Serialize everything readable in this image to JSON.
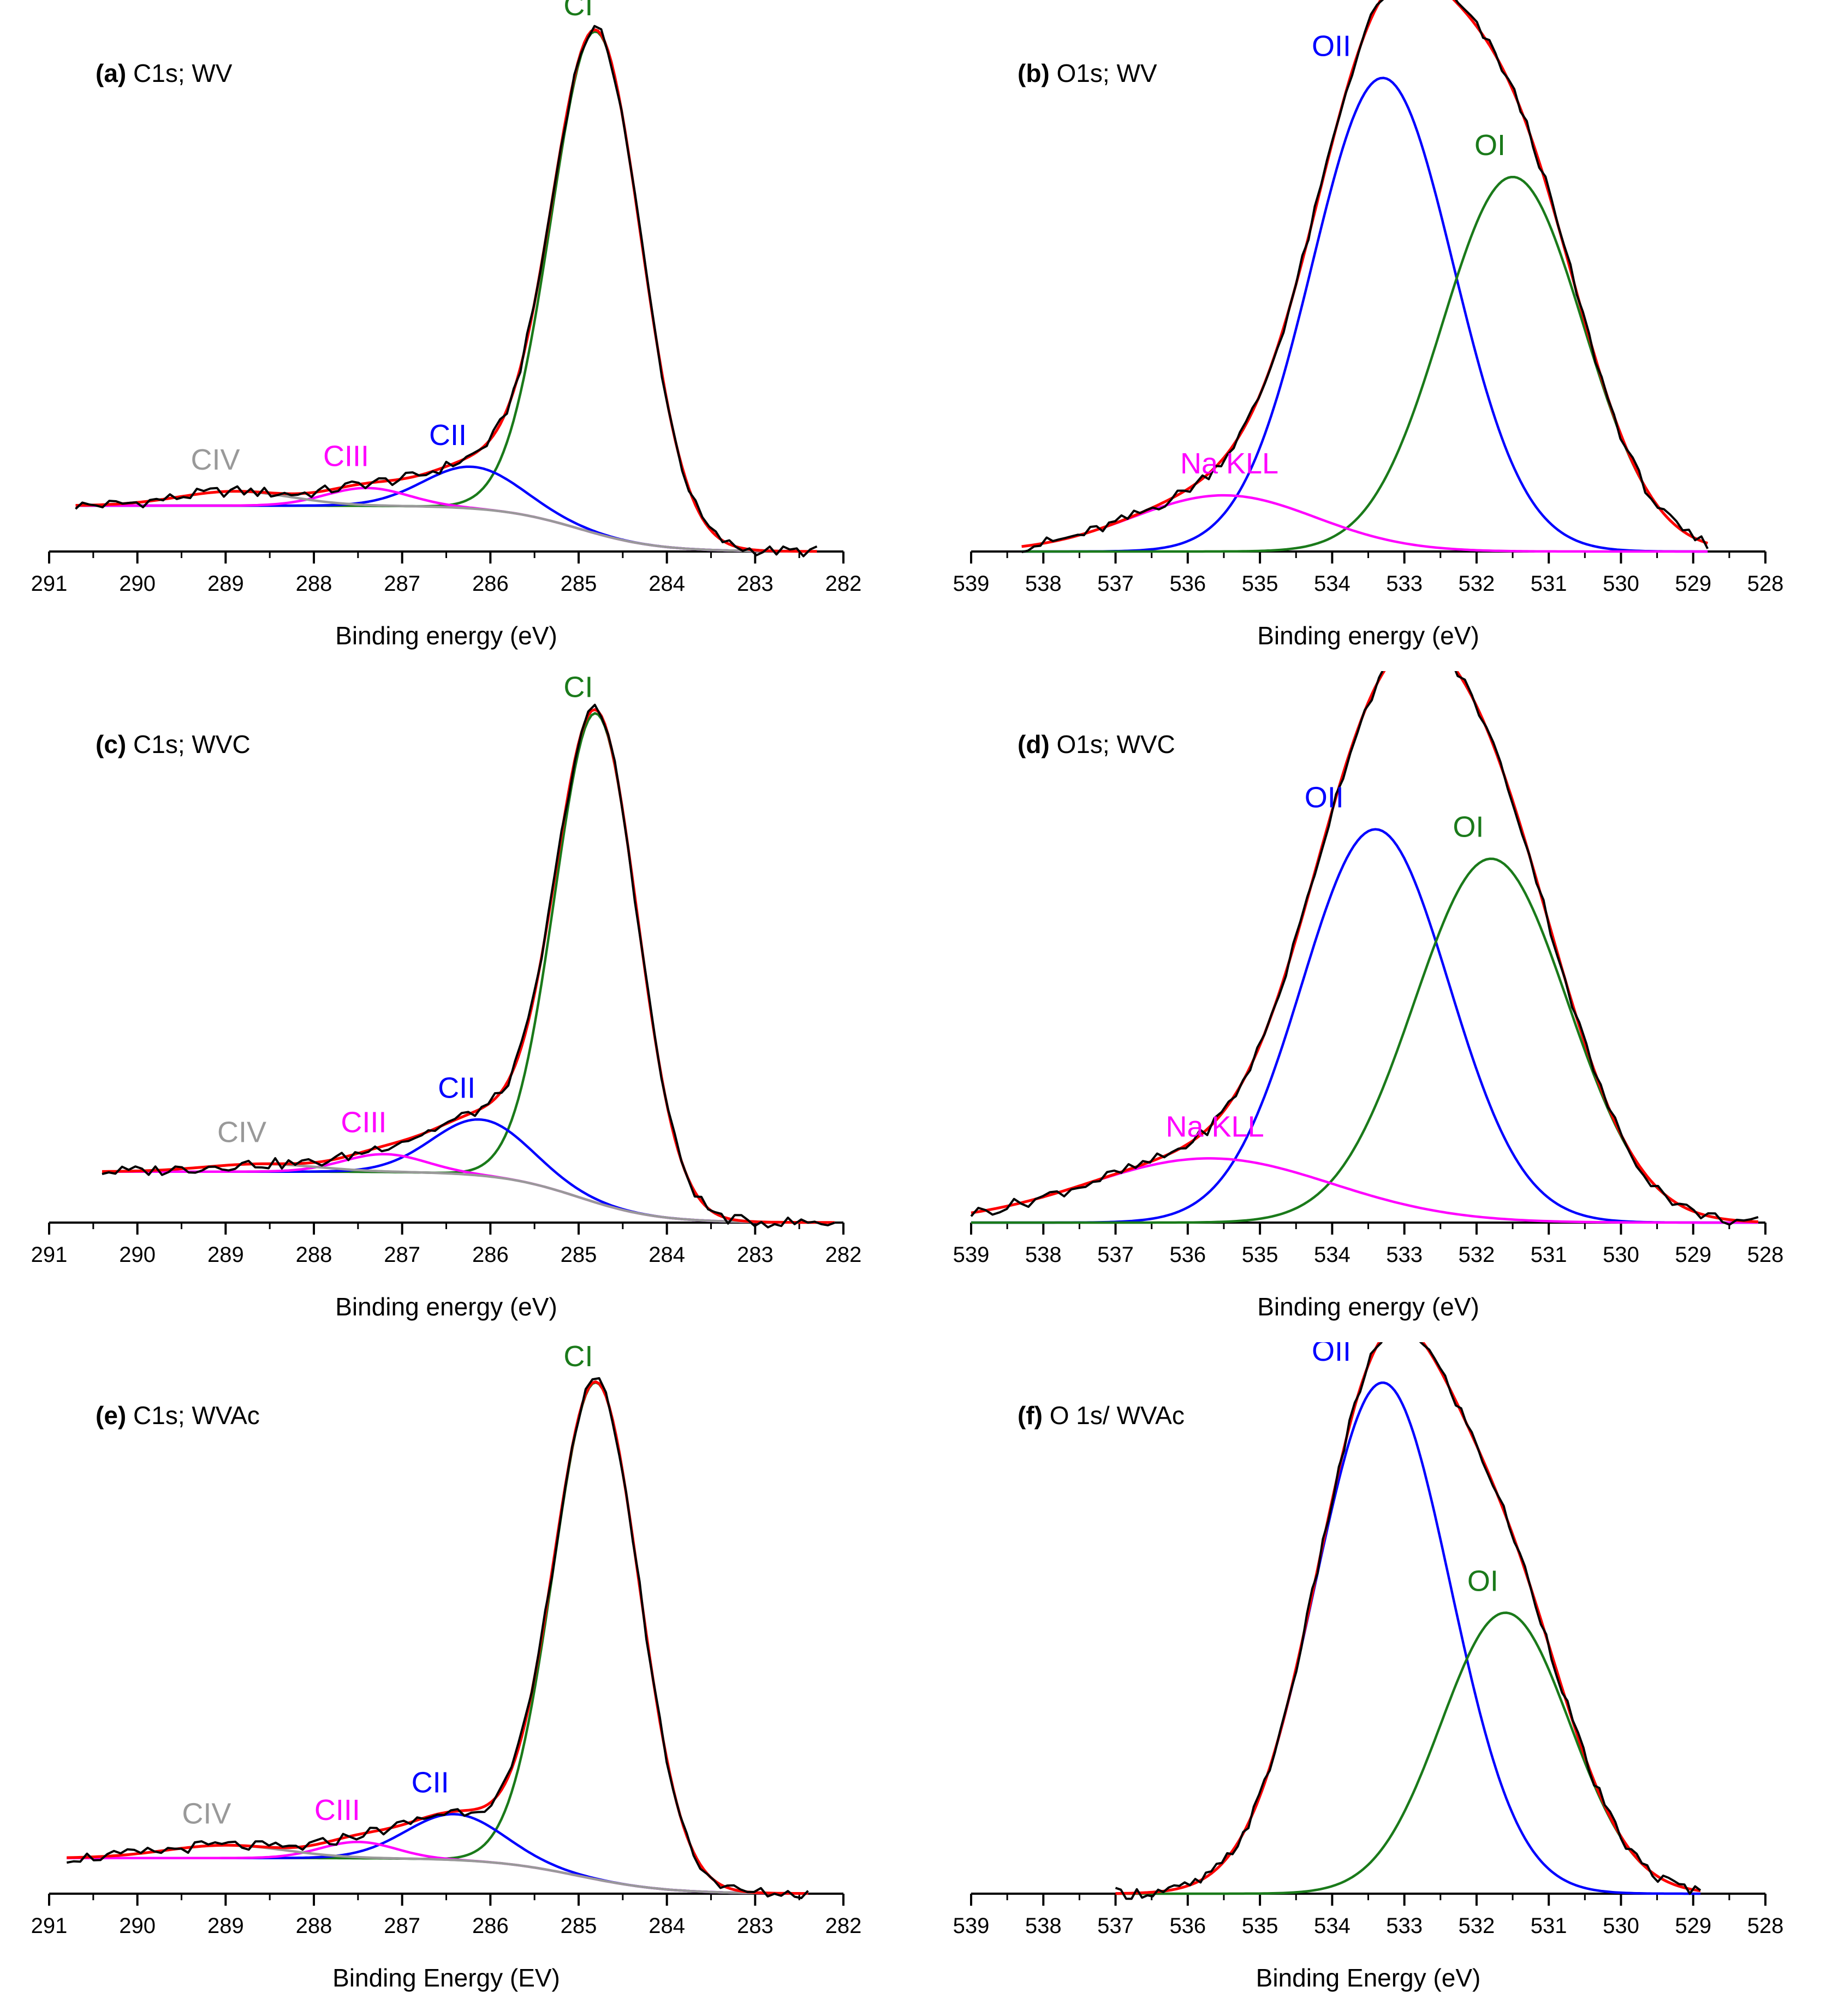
{
  "figure": {
    "colors": {
      "data": "#000000",
      "envelope": "#ff0000",
      "CI": "#1a7a1a",
      "CII": "#0000ff",
      "CIII": "#ff00ff",
      "CIV": "#999999",
      "OI": "#1a7a1a",
      "OII": "#0000ff",
      "NaKLL": "#ff00ff",
      "axis": "#000000"
    }
  },
  "chart_data": [
    {
      "id": "a",
      "type": "line",
      "title_bold": "(a)",
      "title_rest": " C1s; WV",
      "xlabel": "Binding energy (eV)",
      "ylabel": "",
      "xlim": [
        291,
        282
      ],
      "xticks": [
        291,
        290,
        289,
        288,
        287,
        286,
        285,
        284,
        283,
        282
      ],
      "ylim": [
        0,
        1.05
      ],
      "grid": false,
      "data_range": [
        290.7,
        282.3
      ],
      "background": {
        "type": "step",
        "left": 0.09,
        "right": 0.0,
        "center": 285.0,
        "width": 0.45
      },
      "series": [
        {
          "name": "CI",
          "label": "CI",
          "color": "#1a7a1a",
          "center": 284.8,
          "fwhm": 1.2,
          "height": 0.985
        },
        {
          "name": "CII",
          "label": "CII",
          "color": "#0000ff",
          "center": 286.2,
          "fwhm": 1.3,
          "height": 0.082
        },
        {
          "name": "CIII",
          "label": "CIII",
          "color": "#ff00ff",
          "center": 287.4,
          "fwhm": 1.1,
          "height": 0.035
        },
        {
          "name": "CIV",
          "label": "CIV",
          "color": "#999999",
          "center": 288.9,
          "fwhm": 1.5,
          "height": 0.028
        }
      ]
    },
    {
      "id": "b",
      "type": "line",
      "title_bold": "(b)",
      "title_rest": " O1s; WV",
      "xlabel": "Binding energy (eV)",
      "ylabel": "",
      "xlim": [
        539,
        528
      ],
      "xticks": [
        539,
        538,
        537,
        536,
        535,
        534,
        533,
        532,
        531,
        530,
        529,
        528
      ],
      "ylim": [
        0,
        1.0
      ],
      "grid": false,
      "data_range": [
        538.3,
        528.8
      ],
      "background": {
        "type": "flat",
        "left": 0.0,
        "right": 0.0
      },
      "series": [
        {
          "name": "OII",
          "label": "OII",
          "color": "#0000ff",
          "center": 533.3,
          "fwhm": 2.3,
          "height": 0.885
        },
        {
          "name": "OI",
          "label": "OI",
          "color": "#1a7a1a",
          "center": 531.5,
          "fwhm": 2.3,
          "height": 0.7
        },
        {
          "name": "Na KLL",
          "label": "Na KLL",
          "color": "#ff00ff",
          "center": 535.5,
          "fwhm": 3.0,
          "height": 0.105
        }
      ]
    },
    {
      "id": "c",
      "type": "line",
      "title_bold": "(c)",
      "title_rest": " C1s; WVC",
      "xlabel": "Binding energy (eV)",
      "ylabel": "",
      "xlim": [
        291,
        282
      ],
      "xticks": [
        291,
        290,
        289,
        288,
        287,
        286,
        285,
        284,
        283,
        282
      ],
      "ylim": [
        0,
        1.05
      ],
      "grid": false,
      "data_range": [
        290.4,
        282.1
      ],
      "background": {
        "type": "step",
        "left": 0.1,
        "right": 0.0,
        "center": 285.0,
        "width": 0.45
      },
      "series": [
        {
          "name": "CI",
          "label": "CI",
          "color": "#1a7a1a",
          "center": 284.8,
          "fwhm": 1.1,
          "height": 0.96
        },
        {
          "name": "CII",
          "label": "CII",
          "color": "#0000ff",
          "center": 286.1,
          "fwhm": 1.3,
          "height": 0.11
        },
        {
          "name": "CIII",
          "label": "CIII",
          "color": "#ff00ff",
          "center": 287.2,
          "fwhm": 1.1,
          "height": 0.035
        },
        {
          "name": "CIV",
          "label": "CIV",
          "color": "#999999",
          "center": 288.6,
          "fwhm": 1.5,
          "height": 0.015
        }
      ]
    },
    {
      "id": "d",
      "type": "line",
      "title_bold": "(d)",
      "title_rest": " O1s; WVC",
      "xlabel": "Binding energy (eV)",
      "ylabel": "",
      "xlim": [
        539,
        528
      ],
      "xticks": [
        539,
        538,
        537,
        536,
        535,
        534,
        533,
        532,
        531,
        530,
        529,
        528
      ],
      "ylim": [
        0,
        1.0
      ],
      "grid": false,
      "data_range": [
        539.0,
        528.1
      ],
      "background": {
        "type": "flat",
        "left": 0.0,
        "right": 0.0
      },
      "series": [
        {
          "name": "OII",
          "label": "OII",
          "color": "#0000ff",
          "center": 533.4,
          "fwhm": 2.4,
          "height": 0.735
        },
        {
          "name": "OI",
          "label": "OI",
          "color": "#1a7a1a",
          "center": 531.8,
          "fwhm": 2.5,
          "height": 0.68
        },
        {
          "name": "Na KLL",
          "label": "Na KLL",
          "color": "#ff00ff",
          "center": 535.7,
          "fwhm": 4.0,
          "height": 0.12
        }
      ]
    },
    {
      "id": "e",
      "type": "line",
      "title_bold": "(e)",
      "title_rest": " C1s; WVAc",
      "xlabel": "Binding Energy (EV)",
      "ylabel": "",
      "xlim": [
        291,
        282
      ],
      "xticks": [
        291,
        290,
        289,
        288,
        287,
        286,
        285,
        284,
        283,
        282
      ],
      "ylim": [
        0,
        1.05
      ],
      "grid": false,
      "data_range": [
        290.8,
        282.4
      ],
      "background": {
        "type": "step",
        "left": 0.07,
        "right": 0.0,
        "center": 285.0,
        "width": 0.5
      },
      "series": [
        {
          "name": "CI",
          "label": "CI",
          "color": "#1a7a1a",
          "center": 284.8,
          "fwhm": 1.15,
          "height": 0.975
        },
        {
          "name": "CII",
          "label": "CII",
          "color": "#0000ff",
          "center": 286.4,
          "fwhm": 1.3,
          "height": 0.09
        },
        {
          "name": "CIII",
          "label": "CIII",
          "color": "#ff00ff",
          "center": 287.5,
          "fwhm": 1.0,
          "height": 0.032
        },
        {
          "name": "CIV",
          "label": "CIV",
          "color": "#999999",
          "center": 289.0,
          "fwhm": 1.6,
          "height": 0.025
        }
      ]
    },
    {
      "id": "f",
      "type": "line",
      "title_bold": "(f)",
      "title_rest": " O 1s/ WVAc",
      "xlabel": "Binding Energy (eV)",
      "ylabel": "",
      "xlim": [
        539,
        528
      ],
      "xticks": [
        539,
        538,
        537,
        536,
        535,
        534,
        533,
        532,
        531,
        530,
        529,
        528
      ],
      "ylim": [
        0,
        1.0
      ],
      "grid": false,
      "data_range": [
        537.0,
        528.9
      ],
      "background": {
        "type": "flat",
        "left": 0.0,
        "right": 0.0
      },
      "series": [
        {
          "name": "OII",
          "label": "OII",
          "color": "#0000ff",
          "center": 533.3,
          "fwhm": 2.2,
          "height": 0.955
        },
        {
          "name": "OI",
          "label": "OI",
          "color": "#1a7a1a",
          "center": 531.6,
          "fwhm": 2.1,
          "height": 0.525
        }
      ]
    }
  ]
}
